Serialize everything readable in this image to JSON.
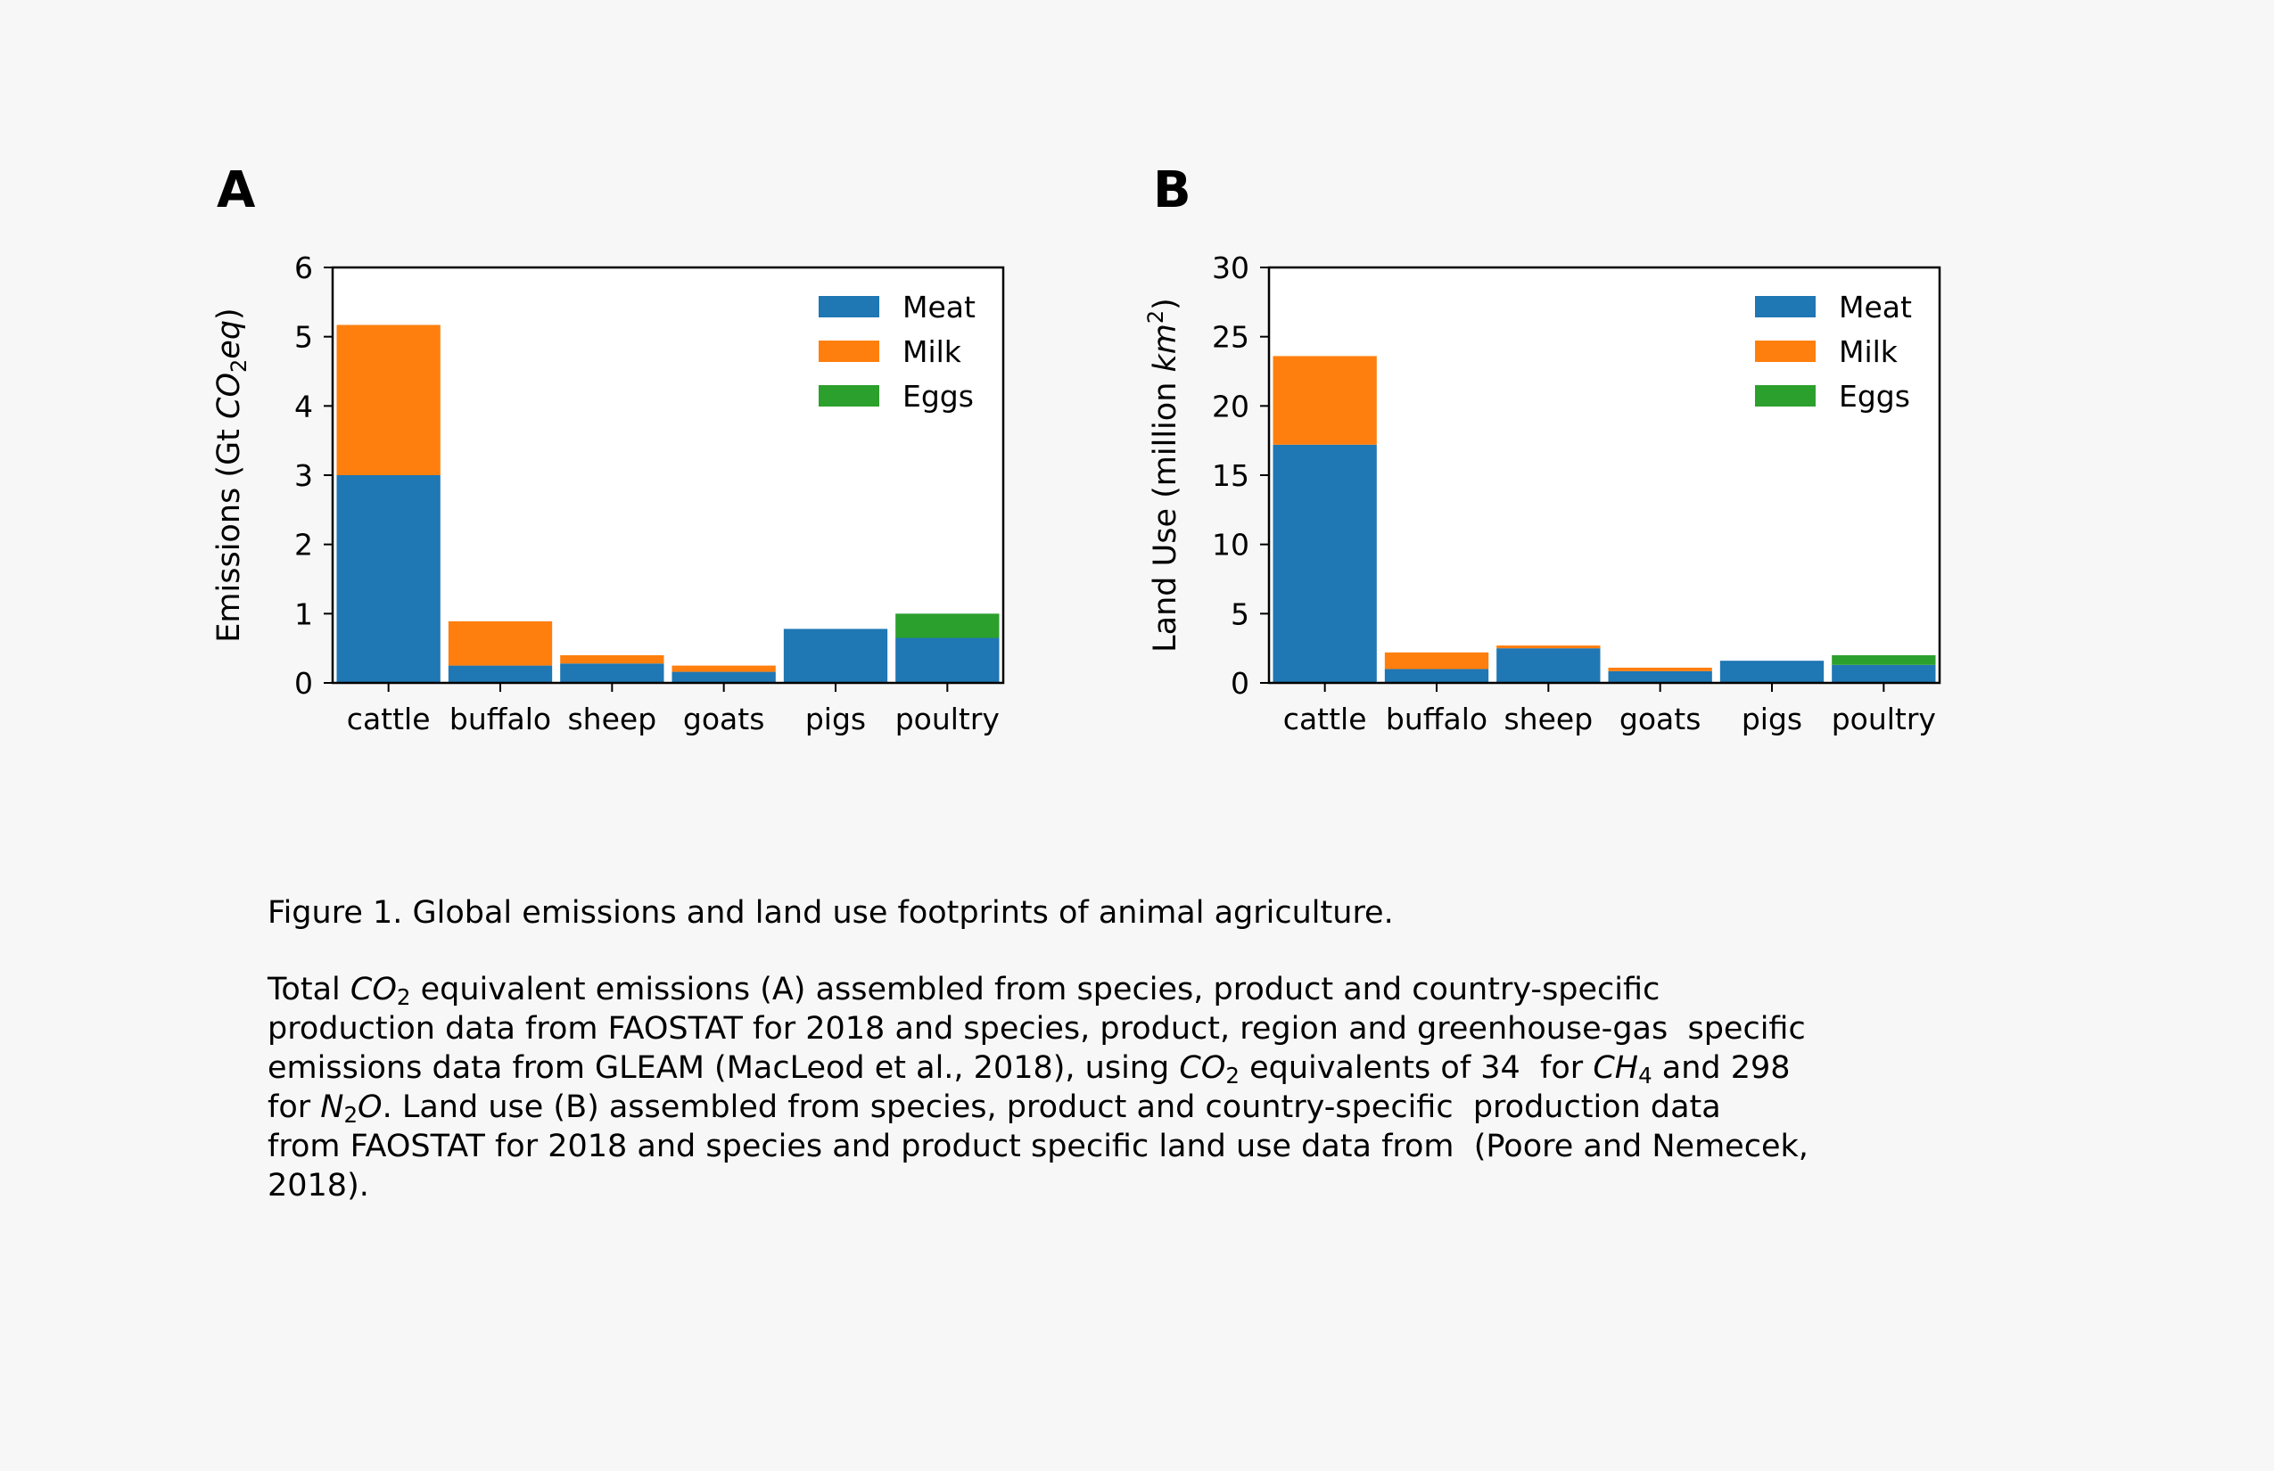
{
  "legend_items": [
    {
      "label": "Meat",
      "color": "#1f77b4"
    },
    {
      "label": "Milk",
      "color": "#ff7f0e"
    },
    {
      "label": "Eggs",
      "color": "#2ca02c"
    }
  ],
  "chart_data": [
    {
      "panel": "A",
      "type": "bar",
      "stacked": true,
      "categories": [
        "cattle",
        "buffalo",
        "sheep",
        "goats",
        "pigs",
        "poultry"
      ],
      "series": [
        {
          "name": "Meat",
          "color": "#1f77b4",
          "values": [
            3.0,
            0.25,
            0.28,
            0.16,
            0.78,
            0.65
          ]
        },
        {
          "name": "Milk",
          "color": "#ff7f0e",
          "values": [
            2.17,
            0.64,
            0.12,
            0.09,
            0.0,
            0.0
          ]
        },
        {
          "name": "Eggs",
          "color": "#2ca02c",
          "values": [
            0.0,
            0.0,
            0.0,
            0.0,
            0.0,
            0.35
          ]
        }
      ],
      "ylabel_parts": [
        "Emissions (Gt ",
        "CO",
        "2",
        "eq",
        ")"
      ],
      "ylim": [
        0,
        6
      ],
      "yticks": [
        0,
        1,
        2,
        3,
        4,
        5,
        6
      ],
      "legend": "top-right",
      "grid": false
    },
    {
      "panel": "B",
      "type": "bar",
      "stacked": true,
      "categories": [
        "cattle",
        "buffalo",
        "sheep",
        "goats",
        "pigs",
        "poultry"
      ],
      "series": [
        {
          "name": "Meat",
          "color": "#1f77b4",
          "values": [
            17.2,
            1.0,
            2.5,
            0.85,
            1.6,
            1.3
          ]
        },
        {
          "name": "Milk",
          "color": "#ff7f0e",
          "values": [
            6.4,
            1.2,
            0.2,
            0.25,
            0.0,
            0.0
          ]
        },
        {
          "name": "Eggs",
          "color": "#2ca02c",
          "values": [
            0.0,
            0.0,
            0.0,
            0.0,
            0.0,
            0.7
          ]
        }
      ],
      "ylabel_parts": [
        "Land Use (million ",
        "km",
        "2",
        ")"
      ],
      "ylim": [
        0,
        30
      ],
      "yticks": [
        0,
        5,
        10,
        15,
        20,
        25,
        30
      ],
      "legend": "top-right",
      "grid": false
    }
  ],
  "caption": {
    "title": "Figure 1. Global emissions and land use footprints of animal agriculture.",
    "line1_pre": "Total ",
    "co2_base": "CO",
    "co2_sub": "2",
    "line1_post": " equivalent emissions (A) assembled from species, product and country-specific",
    "line2": "production data from FAOSTAT for 2018 and species, product, region and greenhouse-gas  specific",
    "line3_pre": "emissions data from GLEAM (MacLeod et al., 2018), using ",
    "line3_mid": " equivalents of 34  for ",
    "ch4_base": "CH",
    "ch4_sub": "4",
    "line3_post": " and 298",
    "line4_pre": "for ",
    "n2o_base1": "N",
    "n2o_sub": "2",
    "n2o_base2": "O",
    "line4_post": ". Land use (B) assembled from species, product and country-specific  production data",
    "line5": "from FAOSTAT for 2018 and species and product specific land use data from  (Poore and Nemecek,",
    "line6": "2018)."
  }
}
